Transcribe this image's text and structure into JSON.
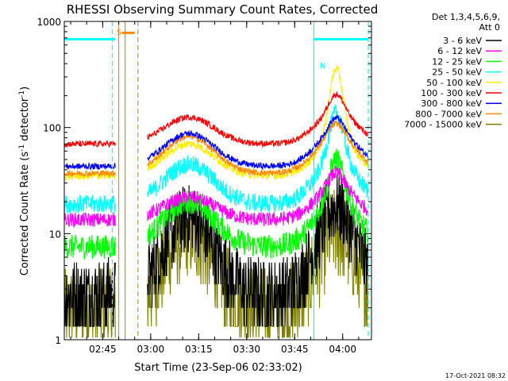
{
  "chart_data": {
    "type": "line",
    "title": "RHESSI Observing Summary Count Rates, Corrected",
    "xlabel": "Start Time (23-Sep-06 02:33:02)",
    "ylabel": "Corrected Count Rate (s",
    "ylabel_sup1": "-1",
    "ylabel_mid": " detector",
    "ylabel_sup2": "-1",
    "ylabel_end": ")",
    "y_scale": "log",
    "ylim": [
      1,
      1000
    ],
    "xlim": [
      "02:33",
      "04:09"
    ],
    "x_ticks": [
      "02:45",
      "03:00",
      "03:15",
      "03:30",
      "03:45",
      "04:00"
    ],
    "y_ticks": [
      "1",
      "10",
      "100",
      "1000"
    ],
    "legend": {
      "header1": "Det 1,3,4,5,6,9,",
      "header2": "Att 0",
      "placement": "right"
    },
    "footer_timestamp": "17-Oct-2021 08:32",
    "flags": {
      "saa_symbol": "S",
      "night_symbol": "N"
    },
    "series": [
      {
        "name": "3 - 6 keV",
        "color": "#000000",
        "base": 2.7,
        "hump": 14,
        "end": 17,
        "peak": 18,
        "noise": 0.35
      },
      {
        "name": "6 - 12 keV",
        "color": "#ff00ff",
        "base": 13.5,
        "hump": 22,
        "end": 28,
        "peak": 38,
        "noise": 0.07
      },
      {
        "name": "12 - 25 keV",
        "color": "#00ff00",
        "base": 7.5,
        "hump": 20,
        "end": 22,
        "peak": 52,
        "noise": 0.12
      },
      {
        "name": "25 - 50 keV",
        "color": "#00ffff",
        "base": 19,
        "hump": 45,
        "end": 50,
        "peak": 145,
        "noise": 0.09
      },
      {
        "name": "50 - 100 keV",
        "color": "#ffee00",
        "base": 35,
        "hump": 70,
        "end": 75,
        "peak": 390,
        "noise": 0.04
      },
      {
        "name": "100 - 300 keV",
        "color": "#ff0000",
        "base": 70,
        "hump": 125,
        "end": 140,
        "peak": 210,
        "noise": 0.03
      },
      {
        "name": "300 - 800 keV",
        "color": "#0000ff",
        "base": 43,
        "hump": 88,
        "end": 92,
        "peak": 125,
        "noise": 0.03
      },
      {
        "name": "800 - 7000 keV",
        "color": "#ff8800",
        "base": 37,
        "hump": 82,
        "end": 85,
        "peak": 110,
        "noise": 0.03
      },
      {
        "name": "7000 - 15000 keV",
        "color": "#808000",
        "base": 1.8,
        "hump": 10,
        "end": 10,
        "peak": 10,
        "noise": 0.45
      }
    ],
    "time_segments": [
      {
        "from": "02:33",
        "to": "02:49",
        "kind": "data"
      },
      {
        "from": "02:49",
        "to": "02:59",
        "kind": "saa_gap"
      },
      {
        "from": "02:59",
        "to": "04:08",
        "kind": "data"
      }
    ],
    "flag_bars": [
      {
        "color": "#00ffff",
        "from": "02:33",
        "to": "02:49",
        "level": 680
      },
      {
        "color": "#ff8800",
        "from": "02:51",
        "to": "02:55",
        "level": 780
      },
      {
        "color": "#00ffff",
        "from": "03:51",
        "to": "04:08",
        "level": 680
      }
    ],
    "vertical_markers": [
      {
        "time": "02:48",
        "color": "#00ffff",
        "style": "dashed"
      },
      {
        "time": "02:50",
        "color": "#ff8800",
        "style": "solid"
      },
      {
        "time": "02:52",
        "color": "#ff8800",
        "style": "solid"
      },
      {
        "time": "02:56",
        "color": "#ff8800",
        "style": "dashed"
      },
      {
        "time": "03:51",
        "color": "#00ffff",
        "style": "solid"
      },
      {
        "time": "04:08",
        "color": "#00ffff",
        "style": "dashed"
      }
    ]
  }
}
